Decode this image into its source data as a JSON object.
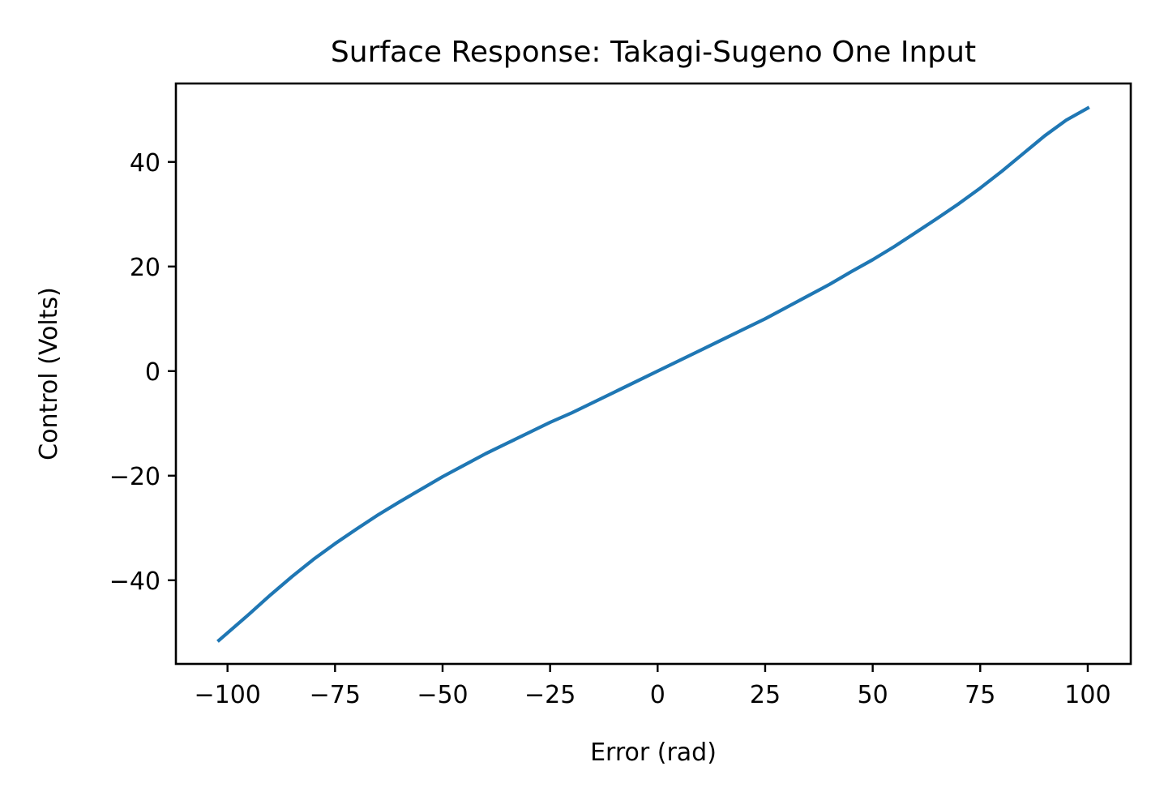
{
  "chart_data": {
    "type": "line",
    "title": "Surface Response: Takagi-Sugeno One Input",
    "xlabel": "Error (rad)",
    "ylabel": "Control (Volts)",
    "xlim": [
      -112,
      110
    ],
    "ylim": [
      -56,
      55
    ],
    "x_ticks": [
      -100,
      -75,
      -50,
      -25,
      0,
      25,
      50,
      75,
      100
    ],
    "x_tick_labels": [
      "−100",
      "−75",
      "−50",
      "−25",
      "0",
      "25",
      "50",
      "75",
      "100"
    ],
    "y_ticks": [
      -40,
      -20,
      0,
      20,
      40
    ],
    "y_tick_labels": [
      "−40",
      "−20",
      "0",
      "20",
      "40"
    ],
    "grid": false,
    "series": [
      {
        "color": "#1f77b4",
        "x": [
          -102,
          -95,
          -90,
          -85,
          -80,
          -75,
          -70,
          -65,
          -60,
          -55,
          -50,
          -45,
          -40,
          -35,
          -30,
          -25,
          -20,
          -15,
          -10,
          -5,
          0,
          5,
          10,
          15,
          20,
          25,
          30,
          35,
          40,
          45,
          50,
          55,
          60,
          65,
          70,
          75,
          80,
          85,
          90,
          95,
          100
        ],
        "y": [
          -51.5,
          -46.5,
          -42.8,
          -39.3,
          -36.0,
          -33.0,
          -30.2,
          -27.5,
          -25.0,
          -22.6,
          -20.2,
          -18.0,
          -15.8,
          -13.8,
          -11.8,
          -9.8,
          -8.0,
          -6.0,
          -4.0,
          -2.0,
          0.0,
          2.0,
          4.0,
          6.0,
          8.0,
          10.0,
          12.2,
          14.4,
          16.6,
          19.0,
          21.3,
          23.8,
          26.5,
          29.2,
          32.0,
          35.0,
          38.2,
          41.6,
          45.0,
          48.0,
          50.3
        ]
      }
    ]
  }
}
